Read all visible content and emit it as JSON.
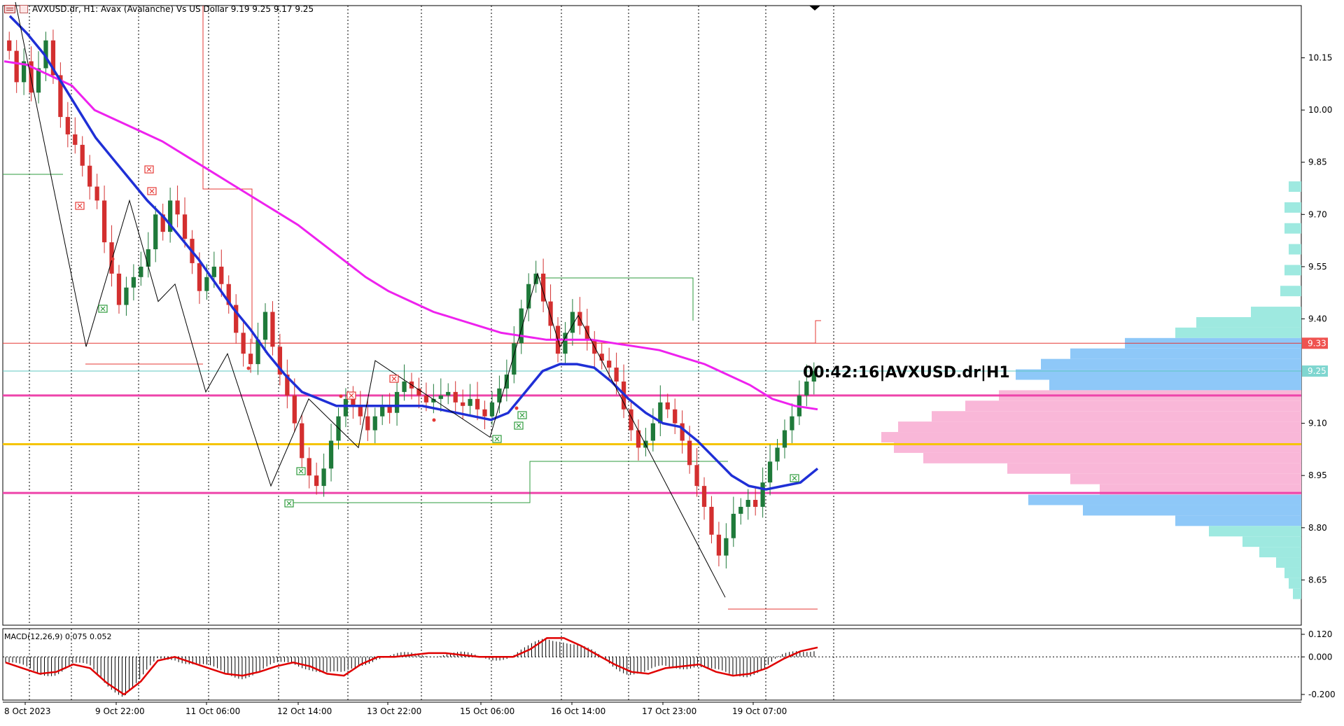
{
  "header": {
    "symbol_line": "AVXUSD.dr, H1:  Avax (Avalanche) Vs US Dollar  9.19 9.25 9.17 9.25",
    "chart_icon": "chart-list-icon",
    "symbol_icon": "symbol-icon"
  },
  "timer_label": "00:42:16|AVXUSD.dr|H1",
  "macd_label": "MACD(12,26,9) 0.075 0.052",
  "colors": {
    "bull_candle": "#1f7a3a",
    "bear_candle": "#d32f2f",
    "ma_fast": "#1f2fd6",
    "ma_slow": "#ee22ee",
    "pink_level": "#ee44aa",
    "gold_level": "#f5c400",
    "zigzag": "#000000",
    "red_step": "#e53935",
    "green_step": "#2e9b3c",
    "vp_pink": "#f9b7d8",
    "vp_blue": "#8ec8f8",
    "vp_cyan": "#9ee9e0",
    "price_tag_red": "#ef5350",
    "price_tag_cyan": "#7fd6d0",
    "macd_line": "#e00000",
    "macd_hist": "#000000"
  },
  "chart_data": {
    "type": "candlestick",
    "title": "AVXUSD.dr, H1:  Avax (Avalanche) Vs US Dollar",
    "ohlc_last": {
      "open": 9.19,
      "high": 9.25,
      "low": 9.17,
      "close": 9.25
    },
    "price_axis": {
      "ticks": [
        "10.15",
        "10.00",
        "9.85",
        "9.70",
        "9.55",
        "9.40",
        "9.10",
        "8.95",
        "8.80",
        "8.65"
      ],
      "ylim": [
        8.52,
        10.3
      ]
    },
    "price_tags": [
      {
        "label": "9.33",
        "value": 9.33,
        "color": "red"
      },
      {
        "label": "9.25",
        "value": 9.25,
        "color": "cyan"
      }
    ],
    "time_axis": [
      "8 Oct 2023",
      "9 Oct 22:00",
      "11 Oct 06:00",
      "12 Oct 14:00",
      "13 Oct 22:00",
      "15 Oct 06:00",
      "16 Oct 14:00",
      "17 Oct 23:00",
      "19 Oct 07:00"
    ],
    "close_series": [
      10.17,
      10.08,
      10.14,
      10.05,
      10.12,
      10.2,
      10.1,
      9.98,
      9.93,
      9.9,
      9.84,
      9.78,
      9.74,
      9.62,
      9.53,
      9.44,
      9.49,
      9.52,
      9.55,
      9.6,
      9.7,
      9.65,
      9.74,
      9.7,
      9.63,
      9.56,
      9.48,
      9.52,
      9.55,
      9.5,
      9.44,
      9.36,
      9.3,
      9.27,
      9.34,
      9.42,
      9.32,
      9.24,
      9.18,
      9.1,
      9.0,
      8.95,
      8.92,
      8.97,
      9.05,
      9.12,
      9.17,
      9.15,
      9.12,
      9.08,
      9.12,
      9.15,
      9.13,
      9.19,
      9.22,
      9.2,
      9.18,
      9.16,
      9.17,
      9.18,
      9.19,
      9.16,
      9.15,
      9.17,
      9.14,
      9.12,
      9.16,
      9.2,
      9.24,
      9.33,
      9.43,
      9.5,
      9.53,
      9.45,
      9.38,
      9.3,
      9.36,
      9.42,
      9.38,
      9.34,
      9.3,
      9.28,
      9.26,
      9.22,
      9.14,
      9.08,
      9.03,
      9.05,
      9.1,
      9.16,
      9.14,
      9.1,
      9.05,
      8.98,
      8.92,
      8.86,
      8.78,
      8.72,
      8.77,
      8.84,
      8.86,
      8.88,
      8.86,
      8.93,
      8.99,
      9.03,
      9.08,
      9.12,
      9.18,
      9.22,
      9.25
    ],
    "ma_fast_values": [
      10.27,
      10.22,
      10.16,
      10.08,
      10.0,
      9.92,
      9.86,
      9.8,
      9.74,
      9.69,
      9.63,
      9.57,
      9.5,
      9.43,
      9.37,
      9.3,
      9.24,
      9.19,
      9.17,
      9.15,
      9.15,
      9.15,
      9.15,
      9.15,
      9.15,
      9.14,
      9.13,
      9.12,
      9.11,
      9.13,
      9.19,
      9.25,
      9.27,
      9.27,
      9.26,
      9.22,
      9.17,
      9.13,
      9.1,
      9.09,
      9.05,
      9.0,
      8.95,
      8.92,
      8.91,
      8.92,
      8.93,
      8.97
    ],
    "ma_slow_values": [
      10.14,
      10.13,
      10.1,
      10.07,
      10.0,
      9.97,
      9.94,
      9.91,
      9.87,
      9.83,
      9.79,
      9.75,
      9.71,
      9.67,
      9.62,
      9.57,
      9.52,
      9.48,
      9.45,
      9.42,
      9.4,
      9.38,
      9.36,
      9.35,
      9.34,
      9.34,
      9.34,
      9.33,
      9.32,
      9.31,
      9.29,
      9.27,
      9.24,
      9.21,
      9.17,
      9.15,
      9.14
    ],
    "zigzag": [
      [
        10.31
      ],
      [
        9.32
      ],
      [
        9.74
      ],
      [
        9.45
      ],
      [
        9.5
      ],
      [
        9.19
      ],
      [
        9.3
      ],
      [
        8.92
      ],
      [
        9.17
      ],
      [
        9.03
      ],
      [
        9.28
      ],
      [
        9.06
      ],
      [
        9.53
      ],
      [
        9.32
      ],
      [
        9.41
      ],
      [
        8.6
      ]
    ],
    "horizontal_levels": [
      {
        "name": "upper-pink",
        "value": 9.18
      },
      {
        "name": "gold",
        "value": 9.04
      },
      {
        "name": "lower-pink",
        "value": 8.9
      },
      {
        "name": "red-thin",
        "value": 9.33
      },
      {
        "name": "cyan-thin",
        "value": 9.25
      }
    ],
    "volume_profile": {
      "bins": [
        {
          "price": 9.78,
          "width": 0.03,
          "color": "cyan"
        },
        {
          "price": 9.72,
          "width": 0.04,
          "color": "cyan"
        },
        {
          "price": 9.66,
          "width": 0.04,
          "color": "cyan"
        },
        {
          "price": 9.6,
          "width": 0.03,
          "color": "cyan"
        },
        {
          "price": 9.54,
          "width": 0.04,
          "color": "cyan"
        },
        {
          "price": 9.48,
          "width": 0.05,
          "color": "cyan"
        },
        {
          "price": 9.42,
          "width": 0.12,
          "color": "cyan"
        },
        {
          "price": 9.39,
          "width": 0.25,
          "color": "cyan"
        },
        {
          "price": 9.36,
          "width": 0.3,
          "color": "cyan"
        },
        {
          "price": 9.33,
          "width": 0.42,
          "color": "blue"
        },
        {
          "price": 9.3,
          "width": 0.55,
          "color": "blue"
        },
        {
          "price": 9.27,
          "width": 0.62,
          "color": "blue"
        },
        {
          "price": 9.24,
          "width": 0.68,
          "color": "blue"
        },
        {
          "price": 9.21,
          "width": 0.6,
          "color": "blue"
        },
        {
          "price": 9.18,
          "width": 0.72,
          "color": "pink"
        },
        {
          "price": 9.15,
          "width": 0.8,
          "color": "pink"
        },
        {
          "price": 9.12,
          "width": 0.88,
          "color": "pink"
        },
        {
          "price": 9.09,
          "width": 0.96,
          "color": "pink"
        },
        {
          "price": 9.06,
          "width": 1.0,
          "color": "pink"
        },
        {
          "price": 9.03,
          "width": 0.97,
          "color": "pink"
        },
        {
          "price": 9.0,
          "width": 0.9,
          "color": "pink"
        },
        {
          "price": 8.97,
          "width": 0.7,
          "color": "pink"
        },
        {
          "price": 8.94,
          "width": 0.55,
          "color": "pink"
        },
        {
          "price": 8.91,
          "width": 0.48,
          "color": "pink"
        },
        {
          "price": 8.88,
          "width": 0.65,
          "color": "blue"
        },
        {
          "price": 8.85,
          "width": 0.52,
          "color": "blue"
        },
        {
          "price": 8.82,
          "width": 0.3,
          "color": "blue"
        },
        {
          "price": 8.79,
          "width": 0.22,
          "color": "cyan"
        },
        {
          "price": 8.76,
          "width": 0.14,
          "color": "cyan"
        },
        {
          "price": 8.73,
          "width": 0.1,
          "color": "cyan"
        },
        {
          "price": 8.7,
          "width": 0.06,
          "color": "cyan"
        },
        {
          "price": 8.67,
          "width": 0.04,
          "color": "cyan"
        },
        {
          "price": 8.64,
          "width": 0.03,
          "color": "cyan"
        },
        {
          "price": 8.61,
          "width": 0.02,
          "color": "cyan"
        }
      ]
    },
    "macd": {
      "ticks": [
        "0.120",
        "0.000",
        "-0.200"
      ],
      "ylim": [
        -0.23,
        0.15
      ],
      "signal_values": [
        -0.03,
        -0.06,
        -0.09,
        -0.08,
        -0.04,
        -0.06,
        -0.14,
        -0.2,
        -0.13,
        -0.02,
        0.0,
        -0.03,
        -0.06,
        -0.09,
        -0.1,
        -0.08,
        -0.05,
        -0.03,
        -0.05,
        -0.09,
        -0.1,
        -0.04,
        0.0,
        0.0,
        0.01,
        0.02,
        0.02,
        0.01,
        0.0,
        0.0,
        0.0,
        0.04,
        0.1,
        0.1,
        0.06,
        0.01,
        -0.04,
        -0.08,
        -0.09,
        -0.06,
        -0.05,
        -0.04,
        -0.08,
        -0.1,
        -0.09,
        -0.06,
        -0.01,
        0.03,
        0.05
      ]
    }
  }
}
